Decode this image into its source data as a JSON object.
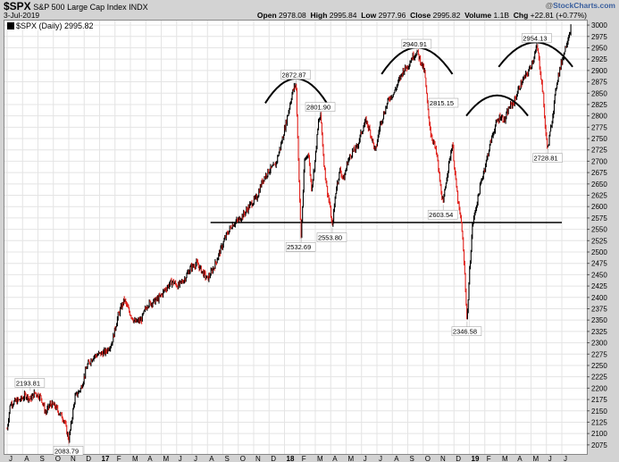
{
  "header": {
    "symbol": "$SPX",
    "description": "S&P 500 Large Cap Index",
    "exchange": "INDX",
    "date": "3-Jul-2019",
    "logo_prefix": "@",
    "logo_text": "StockCharts.com",
    "open_label": "Open",
    "open": "2978.08",
    "high_label": "High",
    "high": "2995.84",
    "low_label": "Low",
    "low": "2977.96",
    "close_label": "Close",
    "close": "2995.82",
    "volume_label": "Volume",
    "volume": "1.1B",
    "chg_label": "Chg",
    "chg": "+22.81 (+0.77%)"
  },
  "legend": {
    "text": "$SPX (Daily) 2995.82"
  },
  "colors": {
    "up": "#000000",
    "down": "#e0201b",
    "grid": "#e4e4e4",
    "arc": "#000000"
  },
  "chart_data": {
    "type": "line",
    "title": "",
    "ylim": [
      2055,
      3010
    ],
    "y_ticks": [
      2075,
      2100,
      2125,
      2150,
      2175,
      2200,
      2225,
      2250,
      2275,
      2300,
      2325,
      2350,
      2375,
      2400,
      2425,
      2450,
      2475,
      2500,
      2525,
      2550,
      2575,
      2600,
      2625,
      2650,
      2675,
      2700,
      2725,
      2750,
      2775,
      2800,
      2825,
      2850,
      2875,
      2900,
      2925,
      2950,
      2975,
      3000
    ],
    "x_ticks": [
      {
        "label": "J",
        "m": 0
      },
      {
        "label": "A",
        "m": 1
      },
      {
        "label": "S",
        "m": 2
      },
      {
        "label": "O",
        "m": 3
      },
      {
        "label": "N",
        "m": 4
      },
      {
        "label": "D",
        "m": 5
      },
      {
        "label": "17",
        "m": 6,
        "bold": true
      },
      {
        "label": "F",
        "m": 7
      },
      {
        "label": "M",
        "m": 8
      },
      {
        "label": "A",
        "m": 9
      },
      {
        "label": "M",
        "m": 10
      },
      {
        "label": "J",
        "m": 11
      },
      {
        "label": "J",
        "m": 12
      },
      {
        "label": "A",
        "m": 13
      },
      {
        "label": "S",
        "m": 14
      },
      {
        "label": "O",
        "m": 15
      },
      {
        "label": "N",
        "m": 16
      },
      {
        "label": "D",
        "m": 17
      },
      {
        "label": "18",
        "m": 18,
        "bold": true
      },
      {
        "label": "F",
        "m": 19
      },
      {
        "label": "M",
        "m": 20
      },
      {
        "label": "A",
        "m": 21
      },
      {
        "label": "M",
        "m": 22
      },
      {
        "label": "J",
        "m": 23
      },
      {
        "label": "J",
        "m": 24
      },
      {
        "label": "A",
        "m": 25
      },
      {
        "label": "S",
        "m": 26
      },
      {
        "label": "O",
        "m": 27
      },
      {
        "label": "N",
        "m": 28
      },
      {
        "label": "D",
        "m": 29
      },
      {
        "label": "19",
        "m": 30,
        "bold": true
      },
      {
        "label": "F",
        "m": 31
      },
      {
        "label": "M",
        "m": 32
      },
      {
        "label": "A",
        "m": 33
      },
      {
        "label": "M",
        "m": 34
      },
      {
        "label": "J",
        "m": 35
      },
      {
        "label": "J",
        "m": 36
      }
    ],
    "keypoints_note_units": "x in months since the J tick",
    "path": [
      [
        0.0,
        2110
      ],
      [
        0.2,
        2165
      ],
      [
        0.5,
        2170
      ],
      [
        0.9,
        2175
      ],
      [
        1.2,
        2185
      ],
      [
        1.5,
        2175
      ],
      [
        1.8,
        2190
      ],
      [
        2.2,
        2180
      ],
      [
        2.5,
        2145
      ],
      [
        2.8,
        2165
      ],
      [
        3.1,
        2160
      ],
      [
        3.4,
        2145
      ],
      [
        3.7,
        2130
      ],
      [
        3.9,
        2100
      ],
      [
        4.0,
        2085
      ],
      [
        4.15,
        2120
      ],
      [
        4.4,
        2180
      ],
      [
        4.8,
        2200
      ],
      [
        5.2,
        2250
      ],
      [
        5.6,
        2270
      ],
      [
        6.0,
        2275
      ],
      [
        6.4,
        2280
      ],
      [
        6.8,
        2300
      ],
      [
        7.2,
        2360
      ],
      [
        7.6,
        2395
      ],
      [
        7.9,
        2370
      ],
      [
        8.3,
        2345
      ],
      [
        8.7,
        2350
      ],
      [
        9.1,
        2385
      ],
      [
        9.5,
        2390
      ],
      [
        9.9,
        2400
      ],
      [
        10.3,
        2420
      ],
      [
        10.7,
        2435
      ],
      [
        11.1,
        2425
      ],
      [
        11.5,
        2440
      ],
      [
        11.9,
        2465
      ],
      [
        12.3,
        2475
      ],
      [
        12.7,
        2455
      ],
      [
        13.0,
        2440
      ],
      [
        13.4,
        2465
      ],
      [
        13.8,
        2500
      ],
      [
        14.2,
        2535
      ],
      [
        14.6,
        2560
      ],
      [
        15.0,
        2570
      ],
      [
        15.4,
        2585
      ],
      [
        15.8,
        2605
      ],
      [
        16.2,
        2620
      ],
      [
        16.6,
        2660
      ],
      [
        17.0,
        2680
      ],
      [
        17.4,
        2690
      ],
      [
        17.8,
        2740
      ],
      [
        18.2,
        2800
      ],
      [
        18.5,
        2850
      ],
      [
        18.75,
        2873
      ],
      [
        18.85,
        2760
      ],
      [
        19.0,
        2600
      ],
      [
        19.08,
        2533
      ],
      [
        19.3,
        2700
      ],
      [
        19.55,
        2720
      ],
      [
        19.75,
        2640
      ],
      [
        19.95,
        2690
      ],
      [
        20.2,
        2785
      ],
      [
        20.35,
        2802
      ],
      [
        20.55,
        2700
      ],
      [
        20.75,
        2640
      ],
      [
        20.95,
        2600
      ],
      [
        21.1,
        2554
      ],
      [
        21.35,
        2640
      ],
      [
        21.6,
        2680
      ],
      [
        21.85,
        2660
      ],
      [
        22.1,
        2700
      ],
      [
        22.4,
        2720
      ],
      [
        22.7,
        2730
      ],
      [
        23.0,
        2765
      ],
      [
        23.3,
        2790
      ],
      [
        23.6,
        2760
      ],
      [
        23.9,
        2720
      ],
      [
        24.2,
        2780
      ],
      [
        24.5,
        2810
      ],
      [
        24.8,
        2840
      ],
      [
        25.1,
        2850
      ],
      [
        25.4,
        2875
      ],
      [
        25.7,
        2900
      ],
      [
        26.0,
        2910
      ],
      [
        26.3,
        2930
      ],
      [
        26.6,
        2941
      ],
      [
        26.9,
        2915
      ],
      [
        27.1,
        2895
      ],
      [
        27.3,
        2815
      ],
      [
        27.5,
        2760
      ],
      [
        27.7,
        2740
      ],
      [
        27.9,
        2710
      ],
      [
        28.1,
        2650
      ],
      [
        28.3,
        2604
      ],
      [
        28.5,
        2660
      ],
      [
        28.7,
        2700
      ],
      [
        28.9,
        2740
      ],
      [
        29.1,
        2660
      ],
      [
        29.3,
        2600
      ],
      [
        29.5,
        2560
      ],
      [
        29.7,
        2450
      ],
      [
        29.85,
        2347
      ],
      [
        30.0,
        2450
      ],
      [
        30.2,
        2560
      ],
      [
        30.5,
        2610
      ],
      [
        30.8,
        2660
      ],
      [
        31.1,
        2700
      ],
      [
        31.4,
        2745
      ],
      [
        31.7,
        2780
      ],
      [
        32.0,
        2800
      ],
      [
        32.3,
        2790
      ],
      [
        32.6,
        2820
      ],
      [
        32.9,
        2830
      ],
      [
        33.2,
        2860
      ],
      [
        33.5,
        2880
      ],
      [
        33.8,
        2895
      ],
      [
        34.1,
        2920
      ],
      [
        34.4,
        2954
      ],
      [
        34.6,
        2900
      ],
      [
        34.8,
        2840
      ],
      [
        34.95,
        2760
      ],
      [
        35.1,
        2729
      ],
      [
        35.4,
        2800
      ],
      [
        35.7,
        2880
      ],
      [
        36.0,
        2920
      ],
      [
        36.3,
        2960
      ],
      [
        36.6,
        2996
      ]
    ],
    "annotations": [
      {
        "text": "2193.81",
        "x": 1.5,
        "y": 2194,
        "pos": "above"
      },
      {
        "text": "2083.79",
        "x": 4.0,
        "y": 2084,
        "pos": "below"
      },
      {
        "text": "2872.87",
        "x": 18.75,
        "y": 2873,
        "pos": "above"
      },
      {
        "text": "2801.90",
        "x": 20.35,
        "y": 2802,
        "pos": "above"
      },
      {
        "text": "2532.69",
        "x": 19.08,
        "y": 2533,
        "pos": "below"
      },
      {
        "text": "2553.80",
        "x": 21.1,
        "y": 2554,
        "pos": "below"
      },
      {
        "text": "2940.91",
        "x": 26.6,
        "y": 2941,
        "pos": "above"
      },
      {
        "text": "2815.15",
        "x": 27.3,
        "y": 2815,
        "pos": "right"
      },
      {
        "text": "2603.54",
        "x": 28.3,
        "y": 2604,
        "pos": "below"
      },
      {
        "text": "2346.58",
        "x": 29.85,
        "y": 2347,
        "pos": "below"
      },
      {
        "text": "2954.13",
        "x": 34.4,
        "y": 2954,
        "pos": "above"
      },
      {
        "text": "2728.81",
        "x": 35.1,
        "y": 2729,
        "pos": "below"
      }
    ],
    "support_line": {
      "x0": 13.2,
      "x1": 36.0,
      "y": 2565
    },
    "arcs": [
      {
        "xc": 18.75,
        "yc": 2840,
        "rx": 2.0,
        "ry": 60
      },
      {
        "xc": 26.6,
        "yc": 2905,
        "rx": 2.3,
        "ry": 65
      },
      {
        "xc": 31.8,
        "yc": 2810,
        "rx": 2.0,
        "ry": 50
      },
      {
        "xc": 34.3,
        "yc": 2920,
        "rx": 2.4,
        "ry": 60
      }
    ]
  }
}
